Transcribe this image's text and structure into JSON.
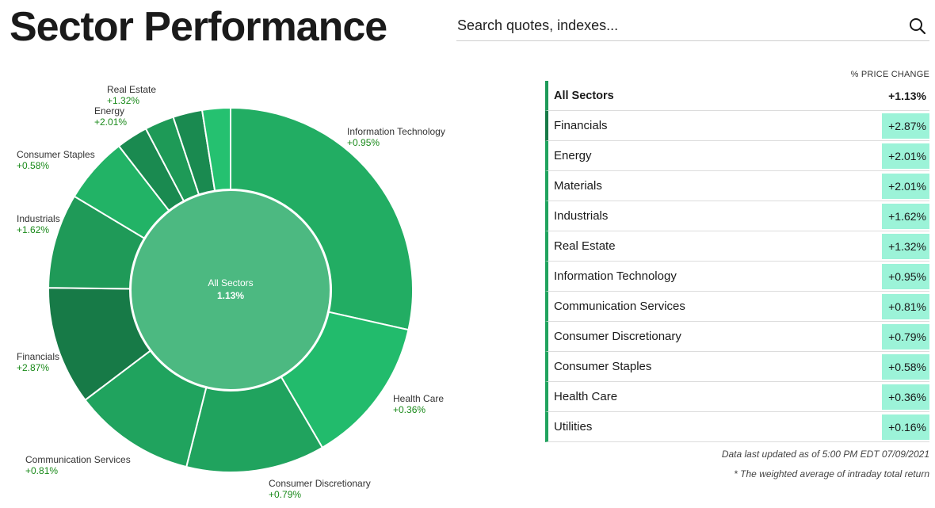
{
  "page": {
    "title": "Sector Performance"
  },
  "search": {
    "placeholder": "Search quotes, indexes..."
  },
  "chart_data": {
    "type": "pie",
    "center_label": "All Sectors",
    "center_value": "1.13%",
    "slices": [
      {
        "name": "Information Technology",
        "label": "+0.95%",
        "weight": 28.5,
        "color": "#22ad63",
        "labeled": true
      },
      {
        "name": "Health Care",
        "label": "+0.36%",
        "weight": 13.1,
        "color": "#22bb6c",
        "labeled": true
      },
      {
        "name": "Consumer Discretionary",
        "label": "+0.79%",
        "weight": 12.3,
        "color": "#20a35e",
        "labeled": true
      },
      {
        "name": "Communication Services",
        "label": "+0.81%",
        "weight": 10.8,
        "color": "#20a35e",
        "labeled": true
      },
      {
        "name": "Financials",
        "label": "+2.87%",
        "weight": 10.5,
        "color": "#177a47",
        "labeled": true
      },
      {
        "name": "Industrials",
        "label": "+1.62%",
        "weight": 8.4,
        "color": "#1f9a58",
        "labeled": true
      },
      {
        "name": "Consumer Staples",
        "label": "+0.58%",
        "weight": 5.9,
        "color": "#22b366",
        "labeled": true
      },
      {
        "name": "Energy",
        "label": "+2.01%",
        "weight": 2.8,
        "color": "#1a8a50",
        "labeled": true
      },
      {
        "name": "Materials",
        "label": "+2.01%",
        "weight": 2.6,
        "color": "#1e9a57",
        "labeled": false
      },
      {
        "name": "Real Estate",
        "label": "+1.32%",
        "weight": 2.6,
        "color": "#1a8a50",
        "labeled": true
      },
      {
        "name": "Utilities",
        "label": "+0.16%",
        "weight": 2.5,
        "color": "#25c170",
        "labeled": false
      }
    ],
    "center_color": "#4cb981",
    "label_value_color": "#1a8a1a"
  },
  "table": {
    "header": "% PRICE CHANGE",
    "rows": [
      {
        "name": "All Sectors",
        "value": "+1.13%",
        "all": true
      },
      {
        "name": "Financials",
        "value": "+2.87%"
      },
      {
        "name": "Energy",
        "value": "+2.01%"
      },
      {
        "name": "Materials",
        "value": "+2.01%"
      },
      {
        "name": "Industrials",
        "value": "+1.62%"
      },
      {
        "name": "Real Estate",
        "value": "+1.32%"
      },
      {
        "name": "Information Technology",
        "value": "+0.95%"
      },
      {
        "name": "Communication Services",
        "value": "+0.81%"
      },
      {
        "name": "Consumer Discretionary",
        "value": "+0.79%"
      },
      {
        "name": "Consumer Staples",
        "value": "+0.58%"
      },
      {
        "name": "Health Care",
        "value": "+0.36%"
      },
      {
        "name": "Utilities",
        "value": "+0.16%"
      }
    ]
  },
  "footnotes": {
    "updated": "Data last updated as of 5:00 PM EDT 07/09/2021",
    "weighted": "* The weighted average of intraday total return"
  }
}
